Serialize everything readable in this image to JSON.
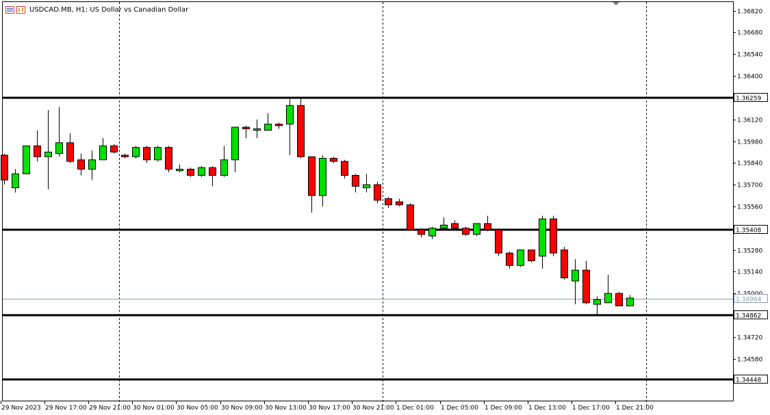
{
  "header": {
    "symbol_title": "USDCAD.MB, H1:  US Dollar vs Canadian Dollar"
  },
  "colors": {
    "background": "#ffffff",
    "bull_candle": "#00e000",
    "bear_candle": "#ff0000",
    "candle_outline": "#000000",
    "level_line": "#000000",
    "bid_line": "#8c9eb0",
    "bid_label_text": "#8c9eb0"
  },
  "chart_data": {
    "type": "candlestick",
    "symbol": "USDCAD.MB",
    "timeframe": "H1",
    "y_range": [
      1.3431,
      1.3688
    ],
    "y_tick_labels": [
      "1.36820",
      "1.36680",
      "1.36540",
      "1.36400",
      "1.36120",
      "1.35980",
      "1.35840",
      "1.35700",
      "1.35560",
      "1.35280",
      "1.35140",
      "1.35000",
      "1.34720",
      "1.34580"
    ],
    "x_tick_labels": [
      {
        "label": "29 Nov 2023",
        "index": 0
      },
      {
        "label": "29 Nov 17:00",
        "index": 4
      },
      {
        "label": "29 Nov 21:00",
        "index": 8
      },
      {
        "label": "30 Nov 01:00",
        "index": 12
      },
      {
        "label": "30 Nov 05:00",
        "index": 16
      },
      {
        "label": "30 Nov 09:00",
        "index": 20
      },
      {
        "label": "30 Nov 13:00",
        "index": 24
      },
      {
        "label": "30 Nov 17:00",
        "index": 28
      },
      {
        "label": "30 Nov 21:00",
        "index": 32
      },
      {
        "label": "1 Dec 01:00",
        "index": 36
      },
      {
        "label": "1 Dec 05:00",
        "index": 40
      },
      {
        "label": "1 Dec 09:00",
        "index": 44
      },
      {
        "label": "1 Dec 13:00",
        "index": 48
      },
      {
        "label": "1 Dec 17:00",
        "index": 52
      },
      {
        "label": "1 Dec 21:00",
        "index": 56
      }
    ],
    "day_separators": [
      10.5,
      34.5,
      58.5
    ],
    "horizontal_levels": [
      "1.36259",
      "1.35408",
      "1.34862",
      "1.34448"
    ],
    "bid_price": "1.34964",
    "candles": [
      {
        "o": 1.3589,
        "h": 1.359,
        "l": 1.357,
        "c": 1.3573
      },
      {
        "o": 1.3568,
        "h": 1.358,
        "l": 1.3565,
        "c": 1.3577
      },
      {
        "o": 1.3577,
        "h": 1.3595,
        "l": 1.3577,
        "c": 1.3595
      },
      {
        "o": 1.3595,
        "h": 1.3605,
        "l": 1.3585,
        "c": 1.3588
      },
      {
        "o": 1.3588,
        "h": 1.3618,
        "l": 1.3567,
        "c": 1.3591
      },
      {
        "o": 1.359,
        "h": 1.362,
        "l": 1.3588,
        "c": 1.3597
      },
      {
        "o": 1.3597,
        "h": 1.3603,
        "l": 1.3584,
        "c": 1.3585
      },
      {
        "o": 1.3586,
        "h": 1.359,
        "l": 1.3576,
        "c": 1.358
      },
      {
        "o": 1.358,
        "h": 1.3592,
        "l": 1.3573,
        "c": 1.3586
      },
      {
        "o": 1.3586,
        "h": 1.36,
        "l": 1.3586,
        "c": 1.3595
      },
      {
        "o": 1.3595,
        "h": 1.3596,
        "l": 1.359,
        "c": 1.3591
      },
      {
        "o": 1.3589,
        "h": 1.359,
        "l": 1.3587,
        "c": 1.3588
      },
      {
        "o": 1.3588,
        "h": 1.3595,
        "l": 1.3587,
        "c": 1.3594
      },
      {
        "o": 1.3594,
        "h": 1.3595,
        "l": 1.3584,
        "c": 1.3586
      },
      {
        "o": 1.3586,
        "h": 1.3595,
        "l": 1.3585,
        "c": 1.3594
      },
      {
        "o": 1.3594,
        "h": 1.3595,
        "l": 1.3578,
        "c": 1.358
      },
      {
        "o": 1.3579,
        "h": 1.3583,
        "l": 1.3578,
        "c": 1.358
      },
      {
        "o": 1.358,
        "h": 1.3581,
        "l": 1.3575,
        "c": 1.3576
      },
      {
        "o": 1.3576,
        "h": 1.3582,
        "l": 1.3575,
        "c": 1.3581
      },
      {
        "o": 1.3581,
        "h": 1.3582,
        "l": 1.3569,
        "c": 1.3576
      },
      {
        "o": 1.3576,
        "h": 1.3595,
        "l": 1.3575,
        "c": 1.3586
      },
      {
        "o": 1.3586,
        "h": 1.3606,
        "l": 1.3578,
        "c": 1.3607
      },
      {
        "o": 1.3607,
        "h": 1.3608,
        "l": 1.36,
        "c": 1.3606
      },
      {
        "o": 1.3605,
        "h": 1.3612,
        "l": 1.36,
        "c": 1.3606
      },
      {
        "o": 1.3605,
        "h": 1.3616,
        "l": 1.3605,
        "c": 1.3609
      },
      {
        "o": 1.3609,
        "h": 1.361,
        "l": 1.3606,
        "c": 1.3608
      },
      {
        "o": 1.3609,
        "h": 1.3625,
        "l": 1.3589,
        "c": 1.3621
      },
      {
        "o": 1.3621,
        "h": 1.3626,
        "l": 1.3587,
        "c": 1.3588
      },
      {
        "o": 1.3588,
        "h": 1.3588,
        "l": 1.3552,
        "c": 1.3563
      },
      {
        "o": 1.3563,
        "h": 1.3589,
        "l": 1.3556,
        "c": 1.3587
      },
      {
        "o": 1.3587,
        "h": 1.3588,
        "l": 1.3584,
        "c": 1.3585
      },
      {
        "o": 1.3585,
        "h": 1.3586,
        "l": 1.3574,
        "c": 1.3576
      },
      {
        "o": 1.3576,
        "h": 1.3577,
        "l": 1.3565,
        "c": 1.3569
      },
      {
        "o": 1.3568,
        "h": 1.3577,
        "l": 1.3565,
        "c": 1.357
      },
      {
        "o": 1.357,
        "h": 1.3572,
        "l": 1.3558,
        "c": 1.356
      },
      {
        "o": 1.3561,
        "h": 1.3562,
        "l": 1.3555,
        "c": 1.3557
      },
      {
        "o": 1.3559,
        "h": 1.3561,
        "l": 1.3556,
        "c": 1.3557
      },
      {
        "o": 1.3557,
        "h": 1.3558,
        "l": 1.3541,
        "c": 1.3541
      },
      {
        "o": 1.3541,
        "h": 1.3542,
        "l": 1.3536,
        "c": 1.3538
      },
      {
        "o": 1.3537,
        "h": 1.3543,
        "l": 1.3535,
        "c": 1.3542
      },
      {
        "o": 1.3542,
        "h": 1.3549,
        "l": 1.3541,
        "c": 1.3544
      },
      {
        "o": 1.3545,
        "h": 1.3547,
        "l": 1.3541,
        "c": 1.3542
      },
      {
        "o": 1.3542,
        "h": 1.3543,
        "l": 1.3537,
        "c": 1.3538
      },
      {
        "o": 1.3538,
        "h": 1.3545,
        "l": 1.3537,
        "c": 1.3545
      },
      {
        "o": 1.3545,
        "h": 1.355,
        "l": 1.354,
        "c": 1.3541
      },
      {
        "o": 1.3541,
        "h": 1.3541,
        "l": 1.3524,
        "c": 1.3526
      },
      {
        "o": 1.3526,
        "h": 1.3527,
        "l": 1.3516,
        "c": 1.3518
      },
      {
        "o": 1.3518,
        "h": 1.3528,
        "l": 1.3517,
        "c": 1.3528
      },
      {
        "o": 1.3528,
        "h": 1.3528,
        "l": 1.352,
        "c": 1.3521
      },
      {
        "o": 1.3524,
        "h": 1.355,
        "l": 1.3516,
        "c": 1.3548
      },
      {
        "o": 1.3548,
        "h": 1.355,
        "l": 1.3524,
        "c": 1.3526
      },
      {
        "o": 1.3528,
        "h": 1.353,
        "l": 1.3509,
        "c": 1.351
      },
      {
        "o": 1.3508,
        "h": 1.3522,
        "l": 1.3493,
        "c": 1.3515
      },
      {
        "o": 1.3515,
        "h": 1.3521,
        "l": 1.3493,
        "c": 1.3494
      },
      {
        "o": 1.3493,
        "h": 1.3498,
        "l": 1.3486,
        "c": 1.3496
      },
      {
        "o": 1.3494,
        "h": 1.3512,
        "l": 1.3494,
        "c": 1.35
      },
      {
        "o": 1.35,
        "h": 1.3501,
        "l": 1.3492,
        "c": 1.3492
      },
      {
        "o": 1.3492,
        "h": 1.3499,
        "l": 1.3492,
        "c": 1.3497
      }
    ]
  }
}
